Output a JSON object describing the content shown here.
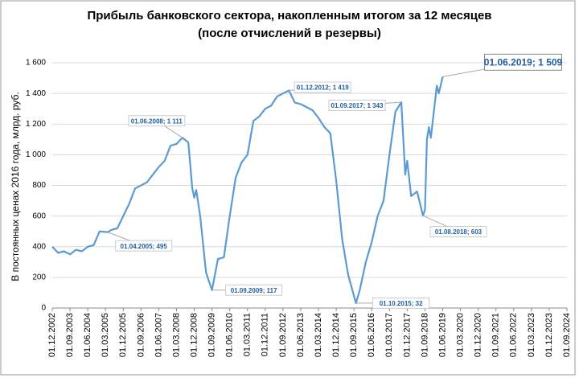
{
  "chart_data": {
    "type": "line",
    "title": "Прибыль банковского сектора, накопленным итогом за 12 месяцев",
    "subtitle": "(после отчислений в резервы)",
    "y_label": "В постоянных ценах 2016 года, млрд. руб.",
    "x": [
      "01.12.2002",
      "01.03.2003",
      "01.06.2003",
      "01.09.2003",
      "01.12.2003",
      "01.03.2004",
      "01.06.2004",
      "01.09.2004",
      "01.12.2004",
      "01.04.2005",
      "01.06.2005",
      "01.09.2005",
      "01.12.2005",
      "01.03.2006",
      "01.06.2006",
      "01.09.2006",
      "01.12.2006",
      "01.03.2007",
      "01.06.2007",
      "01.09.2007",
      "01.12.2007",
      "01.03.2008",
      "01.06.2008",
      "01.09.2008",
      "01.11.2008",
      "01.12.2008",
      "01.01.2009",
      "01.03.2009",
      "01.06.2009",
      "01.09.2009",
      "01.12.2009",
      "01.03.2010",
      "01.06.2010",
      "01.09.2010",
      "01.12.2010",
      "01.03.2011",
      "01.06.2011",
      "01.09.2011",
      "01.12.2011",
      "01.03.2012",
      "01.06.2012",
      "01.12.2012",
      "01.03.2013",
      "01.06.2013",
      "01.09.2013",
      "01.12.2013",
      "01.03.2014",
      "01.06.2014",
      "01.09.2014",
      "01.12.2014",
      "01.03.2015",
      "01.06.2015",
      "01.10.2015",
      "01.12.2015",
      "01.03.2016",
      "01.06.2016",
      "01.09.2016",
      "01.12.2016",
      "01.03.2017",
      "01.06.2017",
      "01.09.2017",
      "01.11.2017",
      "01.12.2017",
      "01.02.2018",
      "01.05.2018",
      "01.08.2018",
      "01.09.2018",
      "01.10.2018",
      "01.11.2018",
      "01.12.2018",
      "01.03.2019",
      "01.04.2019",
      "01.06.2019"
    ],
    "series": [
      {
        "color": "#5b9bd5",
        "values": [
          400,
          360,
          370,
          350,
          380,
          370,
          400,
          410,
          500,
          495,
          510,
          520,
          600,
          680,
          780,
          800,
          820,
          870,
          920,
          960,
          1060,
          1070,
          1111,
          1080,
          780,
          720,
          770,
          600,
          230,
          117,
          320,
          330,
          600,
          850,
          950,
          1000,
          1220,
          1250,
          1300,
          1320,
          1380,
          1419,
          1340,
          1330,
          1310,
          1290,
          1240,
          1180,
          1140,
          830,
          450,
          220,
          32,
          120,
          300,
          430,
          600,
          700,
          1000,
          1280,
          1343,
          870,
          960,
          730,
          760,
          603,
          640,
          1100,
          1180,
          1110,
          1450,
          1400,
          1509
        ]
      }
    ],
    "annotations": [
      "01.04.2005; 495",
      "01.06.2008; 1 111",
      "01.09.2009; 117",
      "01.12.2012; 1 419",
      "01.10.2015; 32",
      "01.09.2017; 1 343",
      "01.08.2018; 603",
      "01.06.2019; 1 509"
    ],
    "xlim": [
      "01.12.2002",
      "01.09.2024"
    ],
    "xticks": [
      "01.12.2002",
      "01.09.2003",
      "01.06.2004",
      "01.03.2005",
      "01.12.2005",
      "01.09.2006",
      "01.06.2007",
      "01.03.2008",
      "01.12.2008",
      "01.09.2009",
      "01.06.2010",
      "01.03.2011",
      "01.12.2011",
      "01.09.2012",
      "01.06.2013",
      "01.03.2014",
      "01.12.2014",
      "01.09.2015",
      "01.06.2016",
      "01.03.2017",
      "01.12.2017",
      "01.09.2018",
      "01.06.2019",
      "01.03.2020",
      "01.12.2020",
      "01.09.2021",
      "01.06.2022",
      "01.03.2023",
      "01.12.2023",
      "01.09.2024"
    ],
    "ylim": [
      0,
      1600
    ],
    "yticks": [
      0,
      200,
      400,
      600,
      800,
      {
        "value": 1000,
        "label": "1 000"
      },
      {
        "value": 1200,
        "label": "1 200"
      },
      {
        "value": 1400,
        "label": "1 400"
      },
      {
        "value": 1600,
        "label": "1 600"
      }
    ],
    "grid": true
  }
}
